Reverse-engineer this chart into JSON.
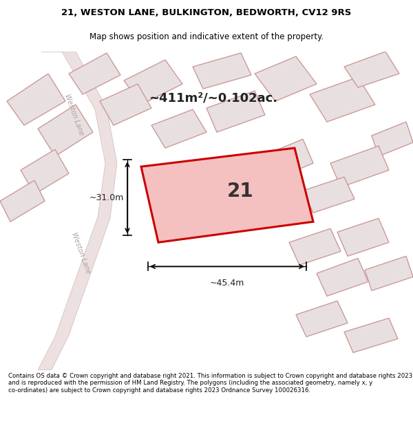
{
  "title_line1": "21, WESTON LANE, BULKINGTON, BEDWORTH, CV12 9RS",
  "title_line2": "Map shows position and indicative extent of the property.",
  "footer_text": "Contains OS data © Crown copyright and database right 2021. This information is subject to Crown copyright and database rights 2023 and is reproduced with the permission of HM Land Registry. The polygons (including the associated geometry, namely x, y co-ordinates) are subject to Crown copyright and database rights 2023 Ordnance Survey 100026316.",
  "area_text": "~411m²/~0.102ac.",
  "label_text": "21",
  "dim_width": "~45.4m",
  "dim_height": "~31.0m",
  "bg_color": "#f5f5f0",
  "map_bg": "#f5f5f0",
  "highlight_color": "#cc0000",
  "highlight_fill": "#f5c0c0",
  "road_color": "#d4b8b8",
  "building_color": "#e8e0e0",
  "building_edge": "#cc9999",
  "road_text_color": "#b0a0a0",
  "title_bg": "#ffffff",
  "footer_bg": "#ffffff"
}
